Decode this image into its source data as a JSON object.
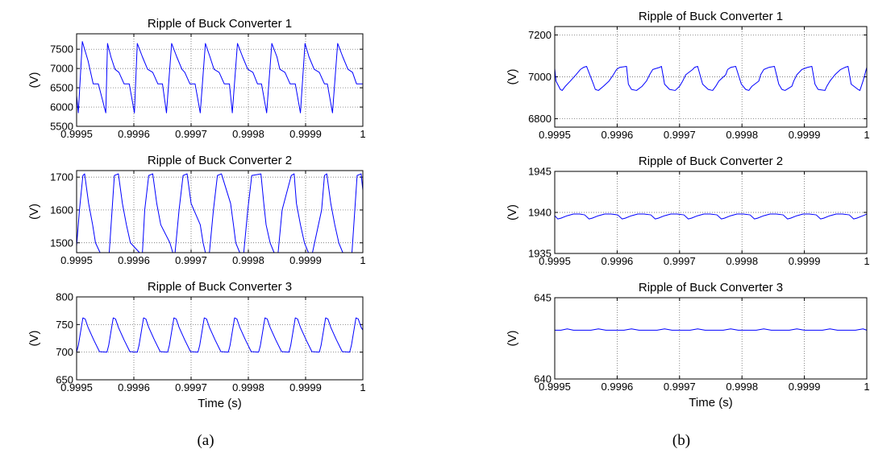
{
  "figure": {
    "panel_labels": [
      "(a)",
      "(b)"
    ]
  },
  "chart_data": [
    {
      "type": "line",
      "panel": "(a)",
      "title": "Ripple of Buck Converter 1",
      "xlabel": "",
      "ylabel": "(V)",
      "xlim": [
        0.9995,
        1.0
      ],
      "ylim": [
        5500,
        7900
      ],
      "xticks": [
        "0.9995",
        "0.9996",
        "0.9997",
        "0.9998",
        "0.9999",
        "1"
      ],
      "yticks": [
        "5500",
        "6000",
        "6500",
        "7000",
        "7500"
      ],
      "ytick_values": [
        5500,
        6000,
        6500,
        7000,
        7500
      ],
      "grid": true,
      "series": [
        {
          "color": "#0000ff",
          "x": [
            0.9995,
            0.999503,
            0.99951,
            0.99952,
            0.999529,
            0.999538,
            0.999551,
            0.999554,
            0.99956,
            0.999567,
            0.999574,
            0.999583,
            0.999592,
            0.999601,
            0.999606,
            0.999615,
            0.999624,
            0.999633,
            0.999642,
            0.99965,
            0.999657,
            0.999666,
            0.999675,
            0.999684,
            0.999689,
            0.999698,
            0.999707,
            0.999716,
            0.999725,
            0.999733,
            0.99974,
            0.999749,
            0.999758,
            0.999767,
            0.999772,
            0.999781,
            0.99979,
            0.999799,
            0.999808,
            0.999816,
            0.999823,
            0.999832,
            0.999841,
            0.99985,
            0.999855,
            0.999864,
            0.999873,
            0.999882,
            0.999891,
            0.999899,
            0.999906,
            0.999915,
            0.999924,
            0.999933,
            0.999938,
            0.999947,
            0.999956,
            0.999965,
            0.999974,
            0.999982,
            0.999989,
            0.999998,
            1.0
          ],
          "y": [
            6300,
            5850,
            7700,
            7200,
            6600,
            6600,
            5850,
            7650,
            7300,
            6980,
            6900,
            6600,
            6600,
            5850,
            7650,
            7300,
            6980,
            6900,
            6600,
            6600,
            5850,
            7650,
            7300,
            6980,
            6900,
            6600,
            6600,
            5850,
            7650,
            7300,
            6980,
            6900,
            6600,
            6600,
            5850,
            7650,
            7300,
            6980,
            6900,
            6600,
            6600,
            5850,
            7650,
            7300,
            6980,
            6900,
            6600,
            6600,
            5850,
            7650,
            7300,
            6980,
            6900,
            6600,
            6600,
            5850,
            7650,
            7300,
            6980,
            6900,
            6600,
            6600,
            6600
          ]
        }
      ]
    },
    {
      "type": "line",
      "panel": "(a)",
      "title": "Ripple of Buck Converter 2",
      "xlabel": "",
      "ylabel": "(V)",
      "xlim": [
        0.9995,
        1.0
      ],
      "ylim": [
        1470,
        1720
      ],
      "xticks": [
        "0.9995",
        "0.9996",
        "0.9997",
        "0.9998",
        "0.9999",
        "1"
      ],
      "yticks": [
        "1500",
        "1600",
        "1700"
      ],
      "ytick_values": [
        1500,
        1600,
        1700
      ],
      "grid": true,
      "series": [
        {
          "color": "#0000ff",
          "x": [
            0.9995,
            0.999505,
            0.999511,
            0.999514,
            0.999521,
            0.999528,
            0.999533,
            0.999541,
            0.999557,
            0.999562,
            0.999566,
            0.999573,
            0.99958,
            0.999587,
            0.999594,
            0.99961,
            0.999615,
            0.999619,
            0.999626,
            0.999633,
            0.99964,
            0.999647,
            0.999663,
            0.999668,
            0.999672,
            0.999679,
            0.999686,
            0.999693,
            0.9997,
            0.999716,
            0.999721,
            0.999725,
            0.999732,
            0.999739,
            0.999746,
            0.999753,
            0.999769,
            0.999774,
            0.999778,
            0.999785,
            0.999792,
            0.999799,
            0.999806,
            0.999822,
            0.999827,
            0.999831,
            0.999838,
            0.999845,
            0.999852,
            0.999859,
            0.999875,
            0.99988,
            0.999884,
            0.999891,
            0.999898,
            0.999905,
            0.999912,
            0.999928,
            0.999933,
            0.999937,
            0.999944,
            0.999951,
            0.999958,
            0.999965,
            0.999981,
            0.999986,
            0.99999,
            0.999997,
            1.0
          ],
          "y": [
            1490,
            1600,
            1705,
            1710,
            1620,
            1555,
            1500,
            1470,
            1470,
            1600,
            1705,
            1710,
            1620,
            1555,
            1500,
            1470,
            1470,
            1600,
            1705,
            1710,
            1620,
            1555,
            1500,
            1470,
            1470,
            1600,
            1705,
            1710,
            1620,
            1555,
            1500,
            1470,
            1470,
            1600,
            1705,
            1710,
            1620,
            1555,
            1500,
            1470,
            1470,
            1600,
            1705,
            1710,
            1620,
            1555,
            1500,
            1470,
            1470,
            1600,
            1705,
            1710,
            1620,
            1555,
            1500,
            1470,
            1470,
            1600,
            1705,
            1710,
            1620,
            1555,
            1500,
            1470,
            1470,
            1600,
            1705,
            1710,
            1660
          ]
        }
      ]
    },
    {
      "type": "line",
      "panel": "(a)",
      "title": "Ripple of Buck Converter 3",
      "xlabel": "Time (s)",
      "ylabel": "(V)",
      "xlim": [
        0.9995,
        1.0
      ],
      "ylim": [
        650,
        800
      ],
      "xticks": [
        "0.9995",
        "0.9996",
        "0.9997",
        "0.9998",
        "0.9999",
        "1"
      ],
      "yticks": [
        "650",
        "700",
        "750",
        "800"
      ],
      "ytick_values": [
        650,
        700,
        750,
        800
      ],
      "grid": true,
      "series": [
        {
          "color": "#0000ff",
          "x": [
            0.9995,
            0.999503,
            0.999511,
            0.999515,
            0.99952,
            0.99953,
            0.99954,
            0.999553,
            0.999556,
            0.999564,
            0.999568,
            0.999573,
            0.999583,
            0.999593,
            0.999606,
            0.999609,
            0.999617,
            0.999621,
            0.999626,
            0.999636,
            0.999646,
            0.999659,
            0.999662,
            0.99967,
            0.999674,
            0.999679,
            0.999689,
            0.999699,
            0.999712,
            0.999715,
            0.999723,
            0.999727,
            0.999732,
            0.999742,
            0.999752,
            0.999765,
            0.999768,
            0.999776,
            0.99978,
            0.999785,
            0.999795,
            0.999805,
            0.999818,
            0.999821,
            0.999829,
            0.999833,
            0.999838,
            0.999848,
            0.999858,
            0.999871,
            0.999874,
            0.999882,
            0.999886,
            0.999891,
            0.999901,
            0.999911,
            0.999924,
            0.999927,
            0.999935,
            0.999939,
            0.999944,
            0.999954,
            0.999964,
            0.999977,
            0.99998,
            0.999988,
            0.999992,
            0.999997,
            1.0
          ],
          "y": [
            700,
            712,
            762,
            760,
            745,
            722,
            701,
            700,
            712,
            762,
            760,
            745,
            722,
            701,
            700,
            712,
            762,
            760,
            745,
            722,
            701,
            700,
            712,
            762,
            760,
            745,
            722,
            701,
            700,
            712,
            762,
            760,
            745,
            722,
            701,
            700,
            712,
            762,
            760,
            745,
            722,
            701,
            700,
            712,
            762,
            760,
            745,
            722,
            701,
            700,
            712,
            762,
            760,
            745,
            722,
            701,
            700,
            712,
            762,
            760,
            745,
            722,
            701,
            700,
            712,
            762,
            760,
            745,
            740
          ]
        }
      ]
    },
    {
      "type": "line",
      "panel": "(b)",
      "title": "Ripple of Buck Converter 1",
      "xlabel": "",
      "ylabel": "(V)",
      "xlim": [
        0.9995,
        1.0
      ],
      "ylim": [
        6760,
        7240
      ],
      "xticks": [
        "0.9995",
        "0.9996",
        "0.9997",
        "0.9998",
        "0.9999",
        "1"
      ],
      "yticks": [
        "6800",
        "7000",
        "7200"
      ],
      "ytick_values": [
        6800,
        7000,
        7200
      ],
      "grid": true,
      "series": [
        {
          "color": "#0000ff",
          "x": [
            0.9995,
            0.999502,
            0.999509,
            0.999512,
            0.999517,
            0.999525,
            0.999534,
            0.999541,
            0.999546,
            0.999551,
            0.999562,
            0.999565,
            0.99957,
            0.999578,
            0.999587,
            0.999594,
            0.999599,
            0.999604,
            0.999615,
            0.999618,
            0.999623,
            0.999631,
            0.99964,
            0.999647,
            0.999652,
            0.999657,
            0.999668,
            0.999671,
            0.999676,
            0.999684,
            0.999693,
            0.9997,
            0.999705,
            0.99971,
            0.999721,
            0.999724,
            0.999729,
            0.999737,
            0.999746,
            0.999753,
            0.999758,
            0.999763,
            0.999774,
            0.999777,
            0.999782,
            0.99979,
            0.999799,
            0.999806,
            0.999811,
            0.999816,
            0.999827,
            0.99983,
            0.999835,
            0.999843,
            0.999852,
            0.999859,
            0.999864,
            0.999869,
            0.99988,
            0.999883,
            0.999888,
            0.999896,
            0.999905,
            0.999912,
            0.999917,
            0.999922,
            0.999933,
            0.999936,
            0.999941,
            0.999949,
            0.999958,
            0.999965,
            0.99997,
            0.999975,
            0.999986,
            0.999989,
            0.999994,
            1.0
          ],
          "y": [
            7040,
            6980,
            6940,
            6935,
            6955,
            6980,
            7010,
            7035,
            7045,
            7050,
            6965,
            6940,
            6935,
            6955,
            6980,
            7010,
            7035,
            7045,
            7050,
            6965,
            6940,
            6935,
            6955,
            6980,
            7010,
            7035,
            7045,
            7050,
            6965,
            6940,
            6935,
            6955,
            6980,
            7010,
            7035,
            7045,
            7050,
            6965,
            6940,
            6935,
            6955,
            6980,
            7010,
            7035,
            7045,
            7050,
            6965,
            6940,
            6935,
            6955,
            6980,
            7010,
            7035,
            7045,
            7050,
            6965,
            6940,
            6935,
            6955,
            6980,
            7010,
            7035,
            7045,
            7050,
            6965,
            6940,
            6935,
            6955,
            6980,
            7010,
            7035,
            7045,
            7050,
            6965,
            6940,
            6935,
            6980,
            7045
          ]
        }
      ]
    },
    {
      "type": "line",
      "panel": "(b)",
      "title": "Ripple of Buck Converter 2",
      "xlabel": "",
      "ylabel": "(V)",
      "xlim": [
        0.9995,
        1.0
      ],
      "ylim": [
        1935,
        1945
      ],
      "xticks": [
        "0.9995",
        "0.9996",
        "0.9997",
        "0.9998",
        "0.9999",
        "1"
      ],
      "yticks": [
        "1935",
        "1940",
        "1945"
      ],
      "ytick_values": [
        1935,
        1940,
        1945
      ],
      "grid": true,
      "series": [
        {
          "color": "#0000ff",
          "x": [
            0.9995,
            0.999505,
            0.99951,
            0.99952,
            0.99953,
            0.99954,
            0.999548,
            0.999555,
            0.99956,
            0.99957,
            0.99958,
            0.99959,
            0.999601,
            0.999608,
            0.999613,
            0.999623,
            0.999633,
            0.999643,
            0.999654,
            0.999661,
            0.999666,
            0.999676,
            0.999686,
            0.999696,
            0.999707,
            0.999714,
            0.999719,
            0.999729,
            0.999739,
            0.999749,
            0.99976,
            0.999767,
            0.999772,
            0.999782,
            0.999792,
            0.999802,
            0.999813,
            0.99982,
            0.999825,
            0.999835,
            0.999845,
            0.999855,
            0.999866,
            0.999873,
            0.999878,
            0.999888,
            0.999898,
            0.999908,
            0.999919,
            0.999926,
            0.999931,
            0.999941,
            0.999951,
            0.999961,
            0.999972,
            0.999979,
            0.999984,
            0.999994,
            1.0
          ],
          "y": [
            1939.6,
            1939.2,
            1939.3,
            1939.6,
            1939.8,
            1939.8,
            1939.7,
            1939.2,
            1939.3,
            1939.6,
            1939.8,
            1939.8,
            1939.7,
            1939.2,
            1939.3,
            1939.6,
            1939.8,
            1939.8,
            1939.7,
            1939.2,
            1939.3,
            1939.6,
            1939.8,
            1939.8,
            1939.7,
            1939.2,
            1939.3,
            1939.6,
            1939.8,
            1939.8,
            1939.7,
            1939.2,
            1939.3,
            1939.6,
            1939.8,
            1939.8,
            1939.7,
            1939.2,
            1939.3,
            1939.6,
            1939.8,
            1939.8,
            1939.7,
            1939.2,
            1939.3,
            1939.6,
            1939.8,
            1939.8,
            1939.7,
            1939.2,
            1939.3,
            1939.6,
            1939.8,
            1939.8,
            1939.7,
            1939.2,
            1939.3,
            1939.6,
            1939.8
          ]
        }
      ]
    },
    {
      "type": "line",
      "panel": "(b)",
      "title": "Ripple of Buck Converter 3",
      "xlabel": "Time (s)",
      "ylabel": "(V)",
      "xlim": [
        0.9995,
        1.0
      ],
      "ylim": [
        640,
        645
      ],
      "xticks": [
        "0.9995",
        "0.9996",
        "0.9997",
        "0.9998",
        "0.9999",
        "1"
      ],
      "yticks": [
        "640",
        "645"
      ],
      "ytick_values": [
        640,
        645
      ],
      "grid": true,
      "series": [
        {
          "color": "#0000ff",
          "x": [
            0.9995,
            0.99951,
            0.99952,
            0.99953,
            0.999548,
            0.999558,
            0.99957,
            0.999582,
            0.999601,
            0.999611,
            0.999623,
            0.999635,
            0.999654,
            0.999664,
            0.999676,
            0.999688,
            0.999707,
            0.999717,
            0.999729,
            0.999741,
            0.99976,
            0.99977,
            0.999782,
            0.999794,
            0.999813,
            0.999823,
            0.999835,
            0.999847,
            0.999866,
            0.999876,
            0.999888,
            0.9999,
            0.999919,
            0.999929,
            0.999941,
            0.999953,
            0.999972,
            0.999982,
            0.999994,
            1.0
          ],
          "y": [
            643.0,
            643.0,
            643.08,
            643.0,
            643.0,
            643.0,
            643.08,
            643.0,
            643.0,
            643.0,
            643.08,
            643.0,
            643.0,
            643.0,
            643.08,
            643.0,
            643.0,
            643.0,
            643.08,
            643.0,
            643.0,
            643.0,
            643.08,
            643.0,
            643.0,
            643.0,
            643.08,
            643.0,
            643.0,
            643.0,
            643.08,
            643.0,
            643.0,
            643.0,
            643.08,
            643.0,
            643.0,
            643.0,
            643.08,
            643.0
          ]
        }
      ]
    }
  ]
}
